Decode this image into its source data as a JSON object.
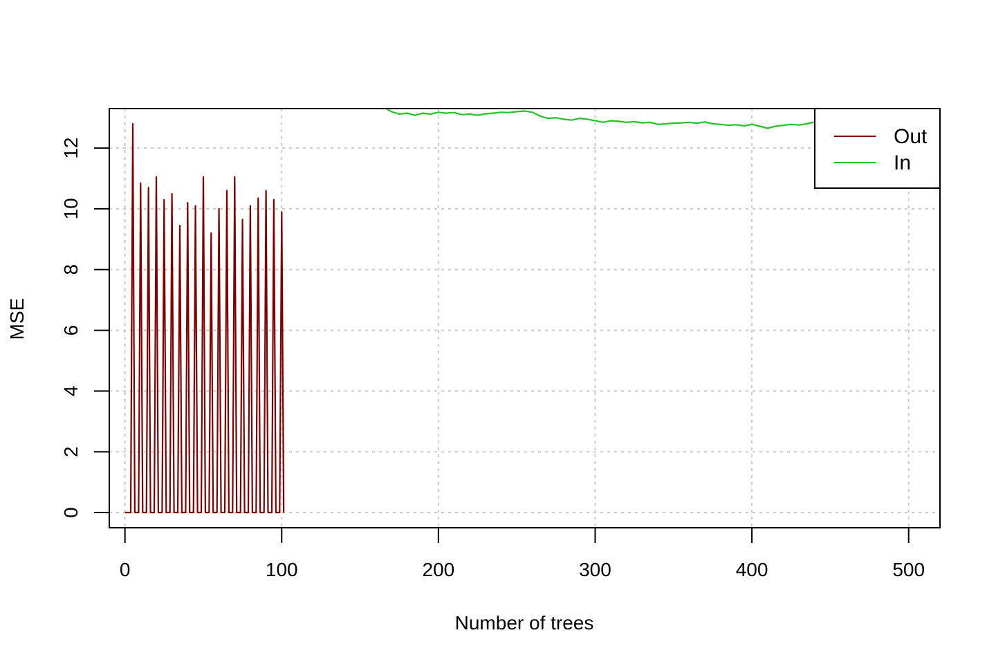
{
  "chart_data": {
    "type": "line",
    "title": "",
    "xlabel": "Number of trees",
    "ylabel": "MSE",
    "xlim": [
      -10,
      520
    ],
    "ylim": [
      -0.5,
      13.3
    ],
    "x_ticks": [
      0,
      100,
      200,
      300,
      400,
      500
    ],
    "y_ticks": [
      0,
      2,
      4,
      6,
      8,
      10,
      12
    ],
    "x_tick_labels": [
      "0",
      "100",
      "200",
      "300",
      "400",
      "500"
    ],
    "y_tick_labels": [
      "0",
      "2",
      "4",
      "6",
      "8",
      "10",
      "12"
    ],
    "grid": true,
    "legend_position": "top-right",
    "series": [
      {
        "name": "Out",
        "color": "#800000",
        "style": "spikes",
        "baseline": 0,
        "x": [
          5,
          10,
          15,
          20,
          25,
          30,
          35,
          40,
          45,
          50,
          55,
          60,
          65,
          70,
          75,
          80,
          85,
          90,
          95,
          100
        ],
        "values": [
          12.8,
          10.85,
          10.7,
          11.05,
          10.3,
          10.5,
          9.45,
          10.2,
          10.1,
          11.05,
          9.2,
          10.0,
          10.6,
          11.05,
          9.65,
          10.1,
          10.35,
          10.6,
          10.3,
          9.9
        ]
      },
      {
        "name": "In",
        "color": "#22c322",
        "style": "line",
        "x": [
          155,
          160,
          165,
          170,
          175,
          180,
          185,
          190,
          195,
          200,
          205,
          210,
          215,
          220,
          225,
          230,
          235,
          240,
          245,
          250,
          255,
          260,
          265,
          270,
          275,
          280,
          285,
          290,
          295,
          300,
          305,
          310,
          315,
          320,
          325,
          330,
          335,
          340,
          345,
          350,
          355,
          360,
          365,
          370,
          375,
          380,
          385,
          390,
          395,
          400,
          405,
          410,
          415,
          420,
          425,
          430,
          435,
          440,
          445,
          450
        ],
        "values": [
          13.3,
          13.32,
          13.35,
          13.2,
          13.12,
          13.15,
          13.08,
          13.15,
          13.12,
          13.18,
          13.15,
          13.17,
          13.1,
          13.12,
          13.08,
          13.13,
          13.15,
          13.18,
          13.17,
          13.2,
          13.22,
          13.18,
          13.05,
          12.98,
          13.0,
          12.95,
          12.92,
          12.98,
          12.95,
          12.9,
          12.85,
          12.9,
          12.88,
          12.85,
          12.87,
          12.83,
          12.85,
          12.78,
          12.8,
          12.82,
          12.83,
          12.85,
          12.82,
          12.86,
          12.8,
          12.78,
          12.75,
          12.77,
          12.73,
          12.78,
          12.72,
          12.65,
          12.72,
          12.75,
          12.78,
          12.76,
          12.8,
          12.86,
          12.95,
          13.05
        ]
      }
    ]
  }
}
